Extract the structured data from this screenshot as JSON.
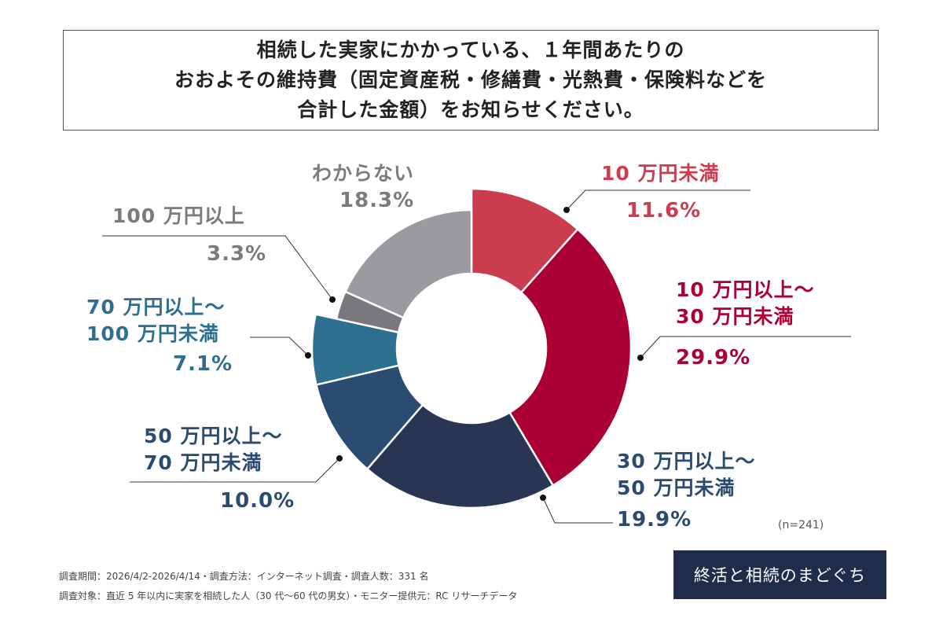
{
  "title_lines": [
    "相続した実家にかかっている、１年間あたりの",
    "おおよその維持費（固定資産税・修繕費・光熱費・保険料などを",
    "合計した金額）をお知らせください。"
  ],
  "chart_data": {
    "type": "pie",
    "variant": "donut",
    "start": "top, clockwise",
    "slices": [
      {
        "label_lines": [
          "10 万円未満"
        ],
        "label": "10万円未満",
        "value": 11.6,
        "pct": "11.6%",
        "color": "#cc3c4f",
        "label_color": "#cc3c4f"
      },
      {
        "label_lines": [
          "10 万円以上～",
          "30 万円未満"
        ],
        "label": "10万円以上～30万円未満",
        "value": 29.9,
        "pct": "29.9%",
        "color": "#ab0033",
        "label_color": "#ab0033"
      },
      {
        "label_lines": [
          "30 万円以上～",
          "50 万円未満"
        ],
        "label": "30万円以上～50万円未満",
        "value": 19.9,
        "pct": "19.9%",
        "color": "#283654",
        "label_color": "#2b4a70"
      },
      {
        "label_lines": [
          "50 万円以上～",
          "70 万円未満"
        ],
        "label": "50万円以上～70万円未満",
        "value": 10.0,
        "pct": "10.0%",
        "color": "#2c4b70",
        "label_color": "#2b4a70"
      },
      {
        "label_lines": [
          "70 万円以上～",
          "100 万円未満"
        ],
        "label": "70万円以上～100万円未満",
        "value": 7.1,
        "pct": "7.1%",
        "color": "#2e6e8f",
        "label_color": "#2e6e8f"
      },
      {
        "label_lines": [
          "100 万円以上"
        ],
        "label": "100万円以上",
        "value": 3.3,
        "pct": "3.3%",
        "color": "#7a787c",
        "label_color": "#7b7b7d"
      },
      {
        "label_lines": [
          "わからない"
        ],
        "label": "わからない",
        "value": 18.3,
        "pct": "18.3%",
        "color": "#9c9a9e",
        "label_color": "#7b7b7d"
      }
    ],
    "sample_note": "(n=241)"
  },
  "footer": {
    "line1": "調査期間：2026/4/2-2026/4/14・調査方法：インターネット調査・調査人数：331 名",
    "line2": "調査対象：直近 5 年以内に実家を相続した人（30 代～60 代の男女）・モニター提供元：RC リサーチデータ"
  },
  "logo": "終活と相続のまどぐち"
}
